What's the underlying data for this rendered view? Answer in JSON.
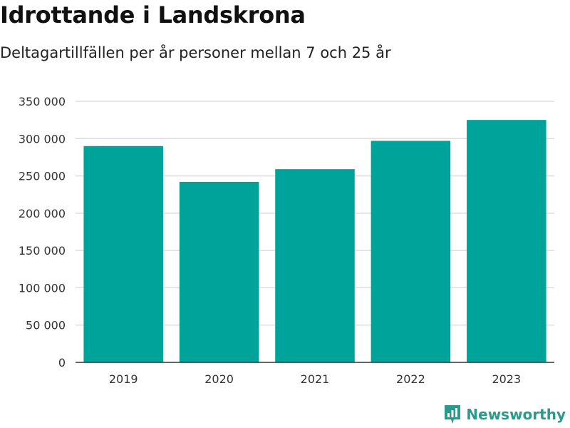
{
  "header": {
    "title": "Idrottande i Landskrona",
    "subtitle": "Deltagartillfällen per år personer mellan 7 och 25 år"
  },
  "brand": {
    "name": "Newsworthy",
    "icon": "newsworthy-logo-icon"
  },
  "colors": {
    "bar": "#00a39a",
    "grid": "#dddddd",
    "axis": "#333333",
    "brand": "#2a9a8c"
  },
  "chart_data": {
    "type": "bar",
    "categories": [
      "2019",
      "2020",
      "2021",
      "2022",
      "2023"
    ],
    "values": [
      290000,
      242000,
      259000,
      297000,
      325000
    ],
    "ylim": [
      0,
      350000
    ],
    "yticks": [
      0,
      50000,
      100000,
      150000,
      200000,
      250000,
      300000,
      350000
    ],
    "ytick_labels": [
      "0",
      "50 000",
      "100 000",
      "150 000",
      "200 000",
      "250 000",
      "300 000",
      "350 000"
    ],
    "grid": true,
    "legend": "none",
    "xlabel": "",
    "ylabel": ""
  }
}
